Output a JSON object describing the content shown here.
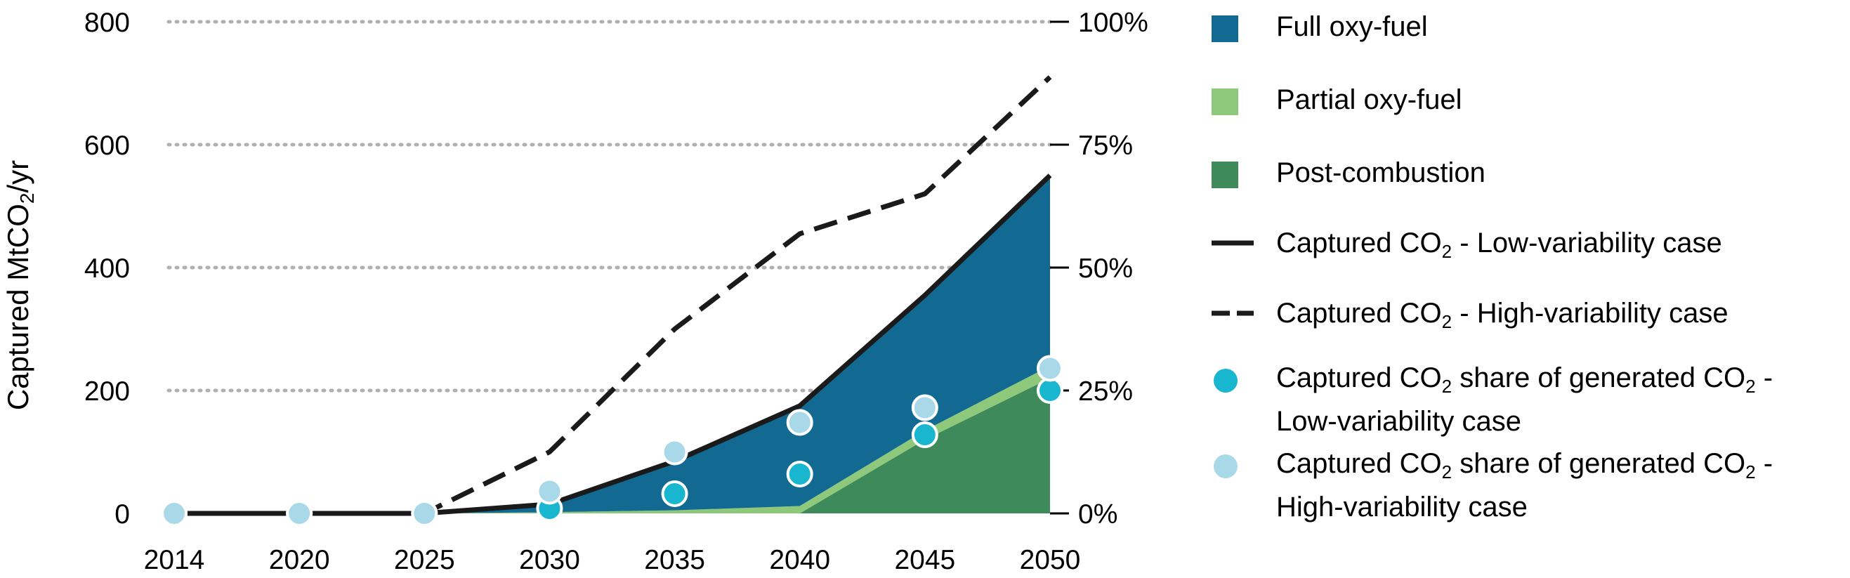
{
  "chart_data": {
    "type": "area",
    "x": [
      2014,
      2020,
      2025,
      2030,
      2035,
      2040,
      2045,
      2050
    ],
    "ylabel_prefix": "Captured MtCO",
    "ylabel_sub": "2",
    "ylabel_suffix": "/yr",
    "ylim": [
      0,
      800
    ],
    "y_ticks": [
      0,
      200,
      400,
      600,
      800
    ],
    "y2lim": [
      0,
      1.0
    ],
    "y2_ticks": [
      "0%",
      "25%",
      "50%",
      "75%",
      "100%"
    ],
    "grid": "dotted horizontal",
    "legend_position": "right",
    "stack": [
      {
        "name": "Post-combustion",
        "color": "#3e8a5a",
        "values": [
          0,
          0,
          0,
          0,
          0,
          0,
          120,
          220
        ]
      },
      {
        "name": "Partial oxy-fuel",
        "color": "#8ec87a",
        "values": [
          0,
          0,
          0,
          2,
          5,
          12,
          15,
          20
        ]
      },
      {
        "name": "Full oxy-fuel",
        "color": "#126a92",
        "values": [
          0,
          0,
          0,
          13,
          80,
          163,
          220,
          310
        ]
      }
    ],
    "lines": [
      {
        "name_prefix": "Captured CO",
        "name_sub": "2",
        "name_suffix": " - Low-variability case",
        "style": "solid",
        "color": "#1a1a1a",
        "values": [
          0,
          0,
          0,
          15,
          85,
          175,
          355,
          550
        ]
      },
      {
        "name_prefix": "Captured CO",
        "name_sub": "2",
        "name_suffix": " - High-variability case",
        "style": "dashed",
        "color": "#1a1a1a",
        "values": [
          0,
          0,
          0,
          100,
          300,
          455,
          520,
          710
        ]
      }
    ],
    "shares": [
      {
        "name_prefix": "Captured CO",
        "name_sub": "2",
        "name_mid": " share of generated CO",
        "name_sub2": "2",
        "name_end": " -",
        "name_line2": "Low-variability case",
        "color": "#19b6cf",
        "values": [
          0,
          0,
          0,
          0.01,
          0.04,
          0.08,
          0.16,
          0.25
        ]
      },
      {
        "name_prefix": "Captured CO",
        "name_sub": "2",
        "name_mid": " share of generated CO",
        "name_sub2": "2",
        "name_end": " -",
        "name_line2": "High-variability case",
        "color": "#a9d9e8",
        "values": [
          0,
          0,
          0,
          0.045,
          0.125,
          0.185,
          0.215,
          0.295
        ]
      }
    ]
  }
}
